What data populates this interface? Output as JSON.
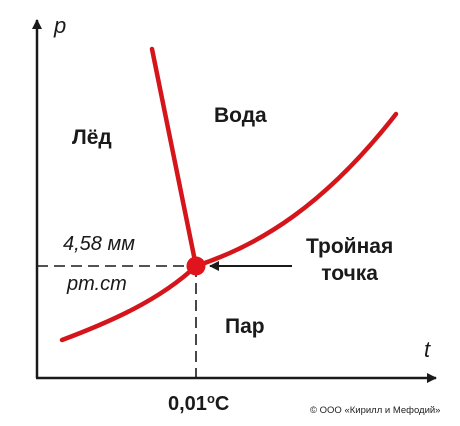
{
  "axes": {
    "y_label": "p",
    "x_label": "t"
  },
  "regions": {
    "ice": "Лёд",
    "water": "Вода",
    "vapor": "Пар"
  },
  "triple_point": {
    "label_line1": "Тройная",
    "label_line2": "точка",
    "pressure_line1": "4,58 мм",
    "pressure_line2": "рт.ст",
    "temperature_value": "0,01",
    "temperature_degree": "o",
    "temperature_unit": "C"
  },
  "copyright": "© ООО «Кирилл и Мефодий»",
  "colors": {
    "curves": "#d4161c",
    "point": "#e0141c",
    "axes": "#1a1a1a"
  }
}
